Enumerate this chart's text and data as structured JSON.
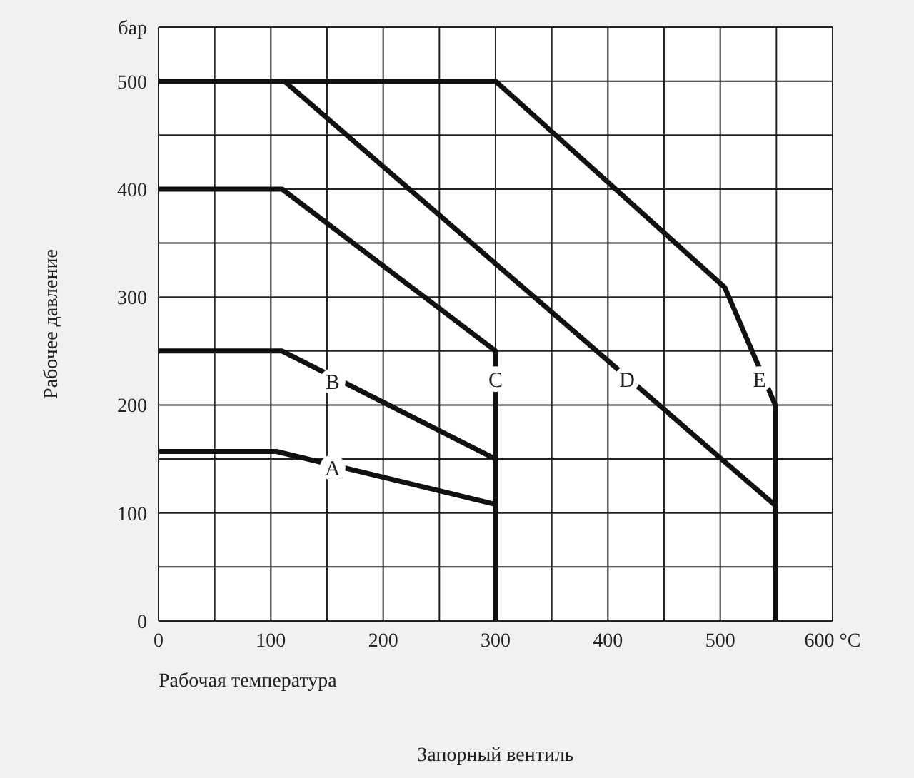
{
  "chart_data": {
    "type": "line",
    "xlabel": "Рабочая температура",
    "ylabel": "Рабочее давление",
    "xlim": [
      0,
      600
    ],
    "ylim": [
      0,
      550
    ],
    "xticks": [
      0,
      {
        "value": 50,
        "label": null
      },
      100,
      {
        "value": 150,
        "label": null
      },
      200,
      {
        "value": 250,
        "label": null
      },
      300,
      {
        "value": 350,
        "label": null
      },
      400,
      {
        "value": 450,
        "label": null
      },
      500,
      {
        "value": 550,
        "label": null
      },
      {
        "value": 600,
        "label": "600 °C"
      }
    ],
    "yticks": [
      0,
      {
        "value": 50,
        "label": null
      },
      100,
      {
        "value": 150,
        "label": null
      },
      200,
      {
        "value": 250,
        "label": null
      },
      300,
      {
        "value": 350,
        "label": null
      },
      400,
      {
        "value": 450,
        "label": null
      },
      500,
      {
        "value": 550,
        "label": "бар"
      }
    ],
    "grid": true,
    "marker": "none",
    "line_style": "solid",
    "series": [
      {
        "color": "#111111",
        "x": [
          0,
          105,
          300
        ],
        "values": [
          157,
          157,
          108
        ]
      },
      {
        "color": "#111111",
        "x": [
          0,
          110,
          300
        ],
        "values": [
          250,
          250,
          150
        ]
      },
      {
        "color": "#111111",
        "x": [
          0,
          110,
          300,
          300
        ],
        "values": [
          400,
          400,
          250,
          0
        ]
      },
      {
        "color": "#111111",
        "x": [
          0,
          112,
          549,
          549
        ],
        "values": [
          500,
          500,
          107,
          0
        ]
      },
      {
        "color": "#111111",
        "x": [
          0,
          300,
          504,
          549,
          549
        ],
        "values": [
          500,
          500,
          309,
          200,
          0
        ]
      }
    ],
    "annotations": [
      {
        "text": "A",
        "x": 155,
        "y": 142
      },
      {
        "text": "B",
        "x": 155,
        "y": 222
      },
      {
        "text": "C",
        "x": 300,
        "y": 224
      },
      {
        "text": "D",
        "x": 417,
        "y": 224
      },
      {
        "text": "E",
        "x": 535,
        "y": 224
      },
      "Запорный вентиль"
    ]
  }
}
